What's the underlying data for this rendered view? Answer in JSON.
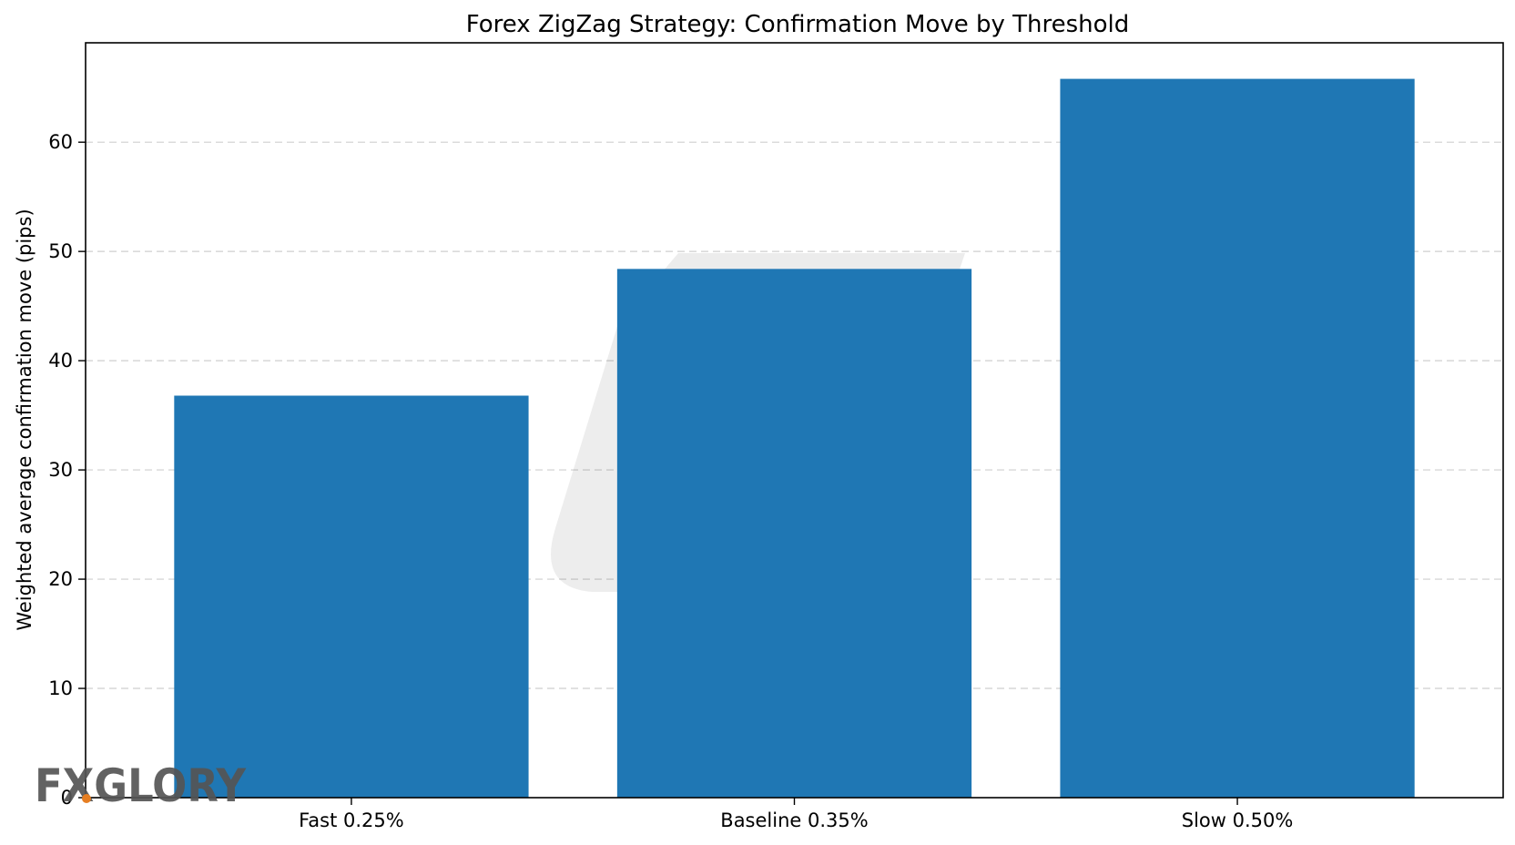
{
  "chart_data": {
    "type": "bar",
    "title": "Forex ZigZag Strategy: Confirmation Move by Threshold",
    "xlabel": "",
    "ylabel": "Weighted average confirmation move (pips)",
    "categories": [
      "Fast 0.25%",
      "Baseline 0.35%",
      "Slow 0.50%"
    ],
    "values": [
      36.8,
      48.4,
      65.8
    ],
    "ylim": [
      0,
      69.1
    ],
    "yticks": [
      0,
      10,
      20,
      30,
      40,
      50,
      60
    ],
    "grid": "horizontal-dashed",
    "bar_color": "#1f77b4"
  },
  "watermark": {
    "logo_text": "FXGLORY",
    "accent_color": "#e67e22"
  }
}
